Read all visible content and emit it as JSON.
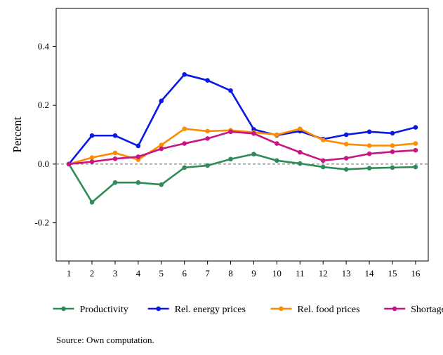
{
  "chart_data": {
    "type": "line",
    "ylabel": "Percent",
    "xlabel": "",
    "x": [
      1,
      2,
      3,
      4,
      5,
      6,
      7,
      8,
      9,
      10,
      11,
      12,
      13,
      14,
      15,
      16
    ],
    "x_tick_labels": [
      "1",
      "2",
      "3",
      "4",
      "5",
      "6",
      "7",
      "8",
      "9",
      "10",
      "11",
      "12",
      "13",
      "14",
      "15",
      "16"
    ],
    "xlim": [
      0.45,
      16.55
    ],
    "ylim": [
      -0.33,
      0.53
    ],
    "y_ticks": [
      -0.2,
      0.0,
      0.2,
      0.4
    ],
    "y_tick_labels": [
      "-0.2",
      "0.0",
      "0.2",
      "0.4"
    ],
    "zero_line": "dashed",
    "grid": false,
    "legend_position": "bottom",
    "series": [
      {
        "name": "Productivity",
        "color": "#2e8b57",
        "values": [
          0.0,
          -0.13,
          -0.063,
          -0.063,
          -0.07,
          -0.012,
          -0.005,
          0.017,
          0.034,
          0.012,
          0.002,
          -0.01,
          -0.018,
          -0.014,
          -0.012,
          -0.01
        ]
      },
      {
        "name": "Rel. energy prices",
        "color": "#0a18e6",
        "values": [
          0.0,
          0.097,
          0.097,
          0.062,
          0.215,
          0.305,
          0.285,
          0.25,
          0.118,
          0.098,
          0.112,
          0.085,
          0.1,
          0.11,
          0.105,
          0.125
        ]
      },
      {
        "name": "Rel. food prices",
        "color": "#ff8c00",
        "values": [
          0.0,
          0.022,
          0.038,
          0.015,
          0.065,
          0.12,
          0.112,
          0.115,
          0.108,
          0.1,
          0.12,
          0.082,
          0.068,
          0.063,
          0.063,
          0.07
        ]
      },
      {
        "name": "Shortages",
        "color": "#c71585",
        "values": [
          0.0,
          0.008,
          0.018,
          0.025,
          0.052,
          0.07,
          0.087,
          0.11,
          0.104,
          0.07,
          0.04,
          0.012,
          0.02,
          0.035,
          0.042,
          0.047
        ]
      }
    ]
  },
  "source_note": "Source: Own computation."
}
